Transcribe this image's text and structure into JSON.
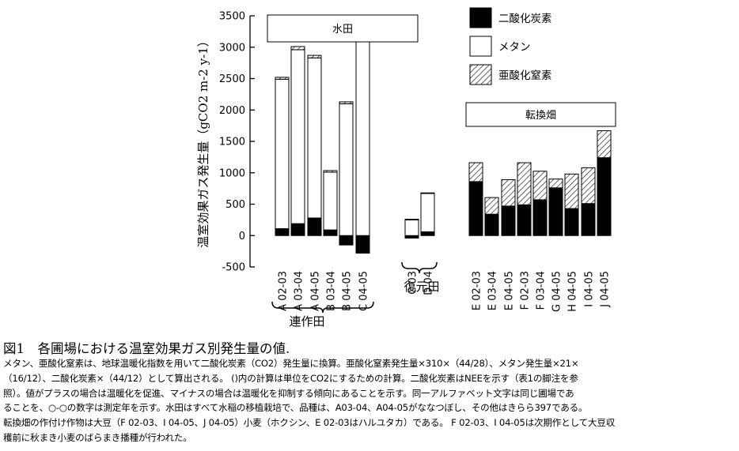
{
  "chart_data": {
    "type": "bar",
    "stacked": true,
    "ylabel": "温室効果ガス発生量（gCO2 m-2 y-1）",
    "ylim": [
      -500,
      3500
    ],
    "yticks": [
      -500,
      0,
      500,
      1000,
      1500,
      2000,
      2500,
      3000,
      3500
    ],
    "ytick_labels": [
      "-500",
      "0",
      "500",
      "1000",
      "1500",
      "2000",
      "2500",
      "3000",
      "3500"
    ],
    "legend": {
      "position": "top-right",
      "entries": [
        "二酸化炭素",
        "メタン",
        "亜酸化窒素"
      ]
    },
    "groups": [
      {
        "name": "連作田",
        "panel_label": "水田",
        "categories": [
          "A 02-03",
          "A 03-04",
          "A 04-05",
          "B 03-04",
          "B 04-05",
          "C 04-05"
        ]
      },
      {
        "name": "復元田",
        "panel_label": "",
        "categories": [
          "C 03",
          "D 04"
        ]
      },
      {
        "name": "",
        "panel_label": "転換畑",
        "categories": [
          "E 02-03",
          "E 03-04",
          "E 04-05",
          "F 02-03",
          "F 03-04",
          "G 04-05",
          "H 04-05",
          "I 04-05",
          "J 04-05"
        ]
      }
    ],
    "series": [
      {
        "name": "二酸化炭素",
        "fill": "#000000",
        "values": [
          110,
          190,
          280,
          90,
          -150,
          -280,
          -40,
          60,
          860,
          340,
          470,
          490,
          570,
          760,
          430,
          510,
          1240
        ]
      },
      {
        "name": "メタン",
        "fill": "#ffffff",
        "values": [
          2380,
          2770,
          2550,
          920,
          2100,
          3300,
          250,
          610,
          0,
          0,
          0,
          0,
          0,
          0,
          0,
          0,
          0
        ]
      },
      {
        "name": "亜酸化窒素",
        "fill": "hatch",
        "values": [
          30,
          50,
          40,
          25,
          30,
          30,
          10,
          10,
          300,
          265,
          420,
          670,
          455,
          140,
          550,
          570,
          430
        ]
      }
    ]
  },
  "caption": {
    "title": "図1　各圃場における温室効果ガス別発生量の値.",
    "lines": [
      "メタン、亜酸化窒素は、地球温暖化指数を用いて二酸化炭素（CO2）発生量に換算。亜酸化窒素発生量×310×（44/28）、メタン発生量×21×",
      "（16/12）、二酸化炭素×（44/12）として算出される。 ()内の計算は単位をCO2にするための計算。二酸化炭素はNEEを示す（表1の脚注を参",
      "照）。値がプラスの場合は温暖化を促進、マイナスの場合は温暖化を抑制する傾向にあることを示す。同一アルファベット文字は同じ圃場であ",
      "ることを、○-○の数字は測定年を示す。水田はすべて水稲の移植栽培で、品種は、A03-04、A04-05がななつぼし、その他はきらら397である。",
      "転換畑の作付け作物は大豆（F 02-03、I 04-05、J 04-05）小麦（ホクシン、E 02-03はハルユタカ）である。 F 02-03、I 04-05は次期作として大豆収",
      "穫前に秋まき小麦のばらまき播種が行われた。"
    ]
  }
}
